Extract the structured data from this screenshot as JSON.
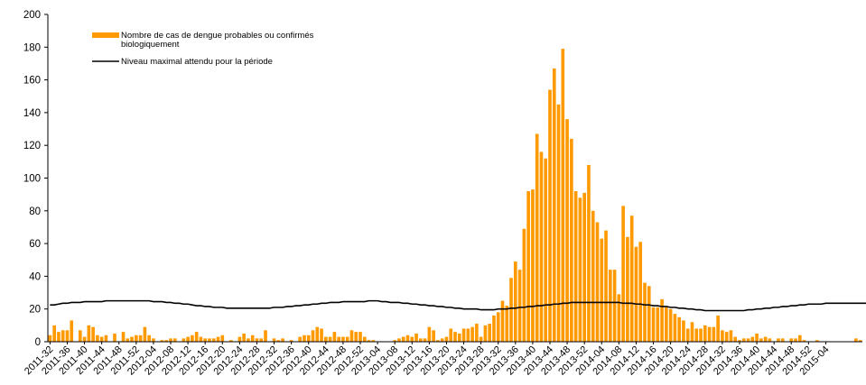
{
  "chart_data": {
    "type": "bar",
    "xlabel": "",
    "ylabel": "",
    "ylim": [
      0,
      200
    ],
    "yticks": [
      0,
      20,
      40,
      60,
      80,
      100,
      120,
      140,
      160,
      180,
      200
    ],
    "grid": false,
    "legend_position": "top-left",
    "colors": {
      "bars": "#FF9900",
      "line": "#000000",
      "axis": "#000000"
    },
    "tick_labels": [
      "2011-32",
      "2011-36",
      "2011-40",
      "2011-44",
      "2011-48",
      "2011-52",
      "2012-04",
      "2012-08",
      "2012-12",
      "2012-16",
      "2012-20",
      "2012-24",
      "2012-28",
      "2012-32",
      "2012-36",
      "2012-40",
      "2012-44",
      "2012-48",
      "2012-52",
      "2013-04",
      "2013-08",
      "2013-12",
      "2013-16",
      "2013-20",
      "2013-24",
      "2013-28",
      "2013-32",
      "2013-36",
      "2013-40",
      "2013-44",
      "2013-48",
      "2013-52",
      "2014-04",
      "2014-08",
      "2014-12",
      "2014-16",
      "2014-20",
      "2014-24",
      "2014-28",
      "2014-32",
      "2014-36",
      "2014-40",
      "2014-44",
      "2014-48",
      "2014-52",
      "2015-04"
    ],
    "series": [
      {
        "name": "Nombre de cas de dengue probables ou confirmés biologiquement",
        "legend_lines": [
          "Nombre de cas de dengue probables ou confirmés",
          "biologiquement"
        ],
        "kind": "bar",
        "values": [
          4,
          10,
          6,
          7,
          7,
          13,
          0,
          7,
          3,
          10,
          9,
          4,
          3,
          4,
          0,
          5,
          0,
          6,
          2,
          3,
          4,
          4,
          9,
          4,
          2,
          0,
          1,
          1,
          2,
          2,
          0,
          2,
          3,
          4,
          6,
          3,
          2,
          2,
          2,
          3,
          4,
          0,
          1,
          0,
          3,
          5,
          2,
          4,
          2,
          2,
          7,
          0,
          2,
          1,
          2,
          0,
          1,
          0,
          3,
          4,
          4,
          7,
          9,
          8,
          3,
          3,
          6,
          3,
          3,
          3,
          7,
          6,
          6,
          3,
          1,
          1,
          0,
          0,
          0,
          0,
          1,
          2,
          3,
          4,
          3,
          5,
          2,
          2,
          9,
          7,
          1,
          2,
          3,
          8,
          6,
          5,
          8,
          8,
          9,
          11,
          3,
          10,
          11,
          16,
          18,
          25,
          22,
          39,
          49,
          44,
          69,
          92,
          93,
          127,
          116,
          112,
          154,
          167,
          145,
          179,
          136,
          124,
          92,
          88,
          91,
          108,
          80,
          73,
          63,
          68,
          44,
          44,
          29,
          83,
          64,
          77,
          58,
          61,
          36,
          34,
          21,
          21,
          26,
          21,
          20,
          17,
          15,
          13,
          8,
          12,
          8,
          8,
          10,
          9,
          9,
          16,
          7,
          6,
          7,
          3,
          1,
          2,
          2,
          3,
          5,
          2,
          3,
          2,
          0,
          2,
          2,
          0,
          2,
          2,
          4,
          1,
          0,
          0,
          1,
          0,
          0,
          0,
          0,
          0,
          0,
          0,
          0,
          2,
          1
        ]
      },
      {
        "name": "Niveau maximal attendu pour la période",
        "kind": "line",
        "values": [
          22.5,
          22.5,
          23,
          23.5,
          23.5,
          24,
          24,
          24,
          24.5,
          24.5,
          24.5,
          24.5,
          24.5,
          25,
          25,
          25,
          25,
          25,
          25,
          25,
          25,
          25,
          25,
          25,
          24.5,
          24.5,
          24.5,
          24,
          24,
          23.5,
          23.5,
          23,
          23,
          22.5,
          22,
          22,
          21.5,
          21.5,
          21,
          21,
          21,
          20.5,
          20.5,
          20.5,
          20.5,
          20.5,
          20.5,
          20.5,
          20.5,
          20.5,
          20.5,
          20.5,
          21,
          21,
          21,
          21.5,
          21.5,
          22,
          22,
          22.5,
          22.5,
          23,
          23,
          23.5,
          23.5,
          24,
          24,
          24,
          24.5,
          24.5,
          24.5,
          24.5,
          24.5,
          24.5,
          25,
          25,
          25,
          24.5,
          24.5,
          24,
          24,
          24,
          23.5,
          23.5,
          23,
          23,
          22.5,
          22.5,
          22,
          22,
          21.5,
          21.5,
          21,
          21,
          20.5,
          20.5,
          20,
          20,
          20,
          20,
          19.5,
          19.5,
          19.5,
          19.5,
          20,
          20,
          20,
          20.5,
          20.5,
          21,
          21,
          21.5,
          21.5,
          22,
          22,
          22.5,
          22.5,
          23,
          23,
          23.5,
          23.5,
          24,
          24,
          24,
          24,
          24,
          24,
          24,
          24,
          24,
          24,
          24,
          24,
          23.5,
          23.5,
          23.5,
          23,
          23,
          22.5,
          22.5,
          22,
          22,
          21.5,
          21.5,
          21,
          21,
          20.5,
          20.5,
          20,
          20,
          19.5,
          19.5,
          19,
          19,
          19,
          19,
          19,
          19,
          19,
          19,
          19,
          19,
          19.5,
          19.5,
          20,
          20,
          20.5,
          20.5,
          21,
          21,
          21.5,
          21.5,
          22,
          22,
          22.5,
          22.5,
          23,
          23,
          23,
          23,
          23.5,
          23.5,
          23.5,
          23.5,
          23.5,
          23.5,
          23.5,
          23.5,
          23.5,
          23.5,
          23.5,
          23.5,
          23,
          23,
          22.5
        ]
      }
    ]
  }
}
